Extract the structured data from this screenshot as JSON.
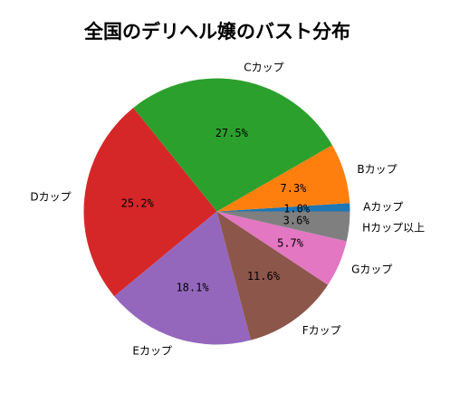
{
  "chart_data": {
    "type": "pie",
    "title": "全国のデリヘル嬢のバスト分布",
    "start_angle_deg": 0,
    "direction": "counterclockwise",
    "slices": [
      {
        "label": "Aカップ",
        "value": 1.0,
        "pct_label": "1.0%",
        "color": "#1f77b4"
      },
      {
        "label": "Bカップ",
        "value": 7.3,
        "pct_label": "7.3%",
        "color": "#ff7f0e"
      },
      {
        "label": "Cカップ",
        "value": 27.5,
        "pct_label": "27.5%",
        "color": "#2ca02c"
      },
      {
        "label": "Dカップ",
        "value": 25.2,
        "pct_label": "25.2%",
        "color": "#d62728"
      },
      {
        "label": "Eカップ",
        "value": 18.1,
        "pct_label": "18.1%",
        "color": "#9467bd"
      },
      {
        "label": "Fカップ",
        "value": 11.6,
        "pct_label": "11.6%",
        "color": "#8c564b"
      },
      {
        "label": "Gカップ",
        "value": 5.7,
        "pct_label": "5.7%",
        "color": "#e377c2"
      },
      {
        "label": "Hカップ以上",
        "value": 3.6,
        "pct_label": "3.6%",
        "color": "#7f7f7f"
      }
    ],
    "legend": "none",
    "grid": false
  }
}
